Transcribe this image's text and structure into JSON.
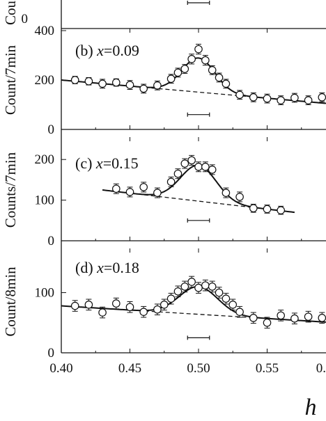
{
  "figure": {
    "x_axis_symbol": "h",
    "x_tick_labels": [
      "0.40",
      "0.45",
      "0.50",
      "0.55",
      "0."
    ]
  },
  "chart_data": [
    {
      "type": "scatter",
      "panel": "a",
      "title": "",
      "xlabel": "",
      "ylabel": "Cou",
      "ylim_visible": [
        0,
        40
      ],
      "y_tick_labels": [
        "0"
      ],
      "x": [],
      "y": [],
      "resolution_bar": {
        "x_center": 0.5,
        "half_width": 0.008,
        "y": 14
      },
      "grid": false
    },
    {
      "type": "scatter",
      "panel": "b",
      "label_prefix": "(b) ",
      "label_var": "x",
      "label_value": "=0.09",
      "ylabel": "Count/7min",
      "xlim": [
        0.4,
        0.6
      ],
      "ylim": [
        0,
        400
      ],
      "y_ticks": [
        0,
        200,
        400
      ],
      "y_tick_labels": [
        "0",
        "200",
        "400"
      ],
      "x": [
        0.41,
        0.42,
        0.43,
        0.44,
        0.45,
        0.46,
        0.47,
        0.48,
        0.485,
        0.49,
        0.495,
        0.5,
        0.505,
        0.51,
        0.515,
        0.52,
        0.53,
        0.54,
        0.55,
        0.56,
        0.57,
        0.58,
        0.59
      ],
      "y": [
        200,
        195,
        185,
        190,
        180,
        165,
        178,
        205,
        230,
        245,
        285,
        325,
        280,
        240,
        210,
        185,
        140,
        130,
        125,
        118,
        128,
        118,
        130
      ],
      "yerr": [
        15,
        15,
        18,
        15,
        18,
        18,
        18,
        18,
        18,
        18,
        20,
        20,
        20,
        18,
        18,
        18,
        18,
        18,
        18,
        18,
        18,
        18,
        18
      ],
      "fit": {
        "baseline_start": [
          0.4,
          200
        ],
        "baseline_end": [
          0.6,
          102
        ],
        "peak_center": 0.5,
        "peak_amplitude": 138,
        "peak_sigma": 0.012
      },
      "resolution_bar": {
        "x_center": 0.5,
        "half_width": 0.008,
        "y": 60
      },
      "grid": false
    },
    {
      "type": "scatter",
      "panel": "c",
      "label_prefix": "(c) ",
      "label_var": "x",
      "label_value": "=0.15",
      "ylabel": "Counts/7min",
      "xlim": [
        0.4,
        0.6
      ],
      "ylim": [
        0,
        250
      ],
      "y_ticks": [
        0,
        100,
        200
      ],
      "y_tick_labels": [
        "0",
        "100",
        "200"
      ],
      "x": [
        0.44,
        0.45,
        0.46,
        0.47,
        0.48,
        0.485,
        0.49,
        0.495,
        0.5,
        0.505,
        0.51,
        0.52,
        0.53,
        0.54,
        0.55,
        0.56
      ],
      "y": [
        128,
        120,
        132,
        118,
        145,
        165,
        190,
        198,
        182,
        182,
        175,
        118,
        108,
        80,
        78,
        75
      ],
      "yerr": [
        12,
        12,
        12,
        12,
        12,
        12,
        12,
        12,
        12,
        12,
        12,
        12,
        12,
        10,
        10,
        10
      ],
      "fit": {
        "baseline_start": [
          0.43,
          125
        ],
        "baseline_end": [
          0.57,
          70
        ],
        "peak_center": 0.5,
        "peak_amplitude": 88,
        "peak_sigma": 0.013
      },
      "resolution_bar": {
        "x_center": 0.5,
        "half_width": 0.008,
        "y": 50
      },
      "grid": false
    },
    {
      "type": "scatter",
      "panel": "d",
      "label_prefix": "(d) ",
      "label_var": "x",
      "label_value": "=0.18",
      "ylabel": "Count/8min",
      "xlim": [
        0.4,
        0.6
      ],
      "ylim": [
        0,
        170
      ],
      "y_ticks": [
        0,
        100
      ],
      "y_tick_labels": [
        "0",
        "100"
      ],
      "x": [
        0.41,
        0.42,
        0.43,
        0.44,
        0.45,
        0.46,
        0.47,
        0.475,
        0.48,
        0.485,
        0.49,
        0.495,
        0.5,
        0.505,
        0.51,
        0.515,
        0.52,
        0.525,
        0.53,
        0.54,
        0.55,
        0.56,
        0.57,
        0.58,
        0.59
      ],
      "y": [
        78,
        80,
        67,
        82,
        76,
        68,
        72,
        80,
        90,
        102,
        110,
        118,
        108,
        112,
        110,
        100,
        90,
        80,
        68,
        58,
        50,
        62,
        57,
        60,
        58
      ],
      "yerr": [
        9,
        9,
        9,
        9,
        9,
        9,
        9,
        9,
        9,
        9,
        9,
        9,
        9,
        9,
        9,
        9,
        9,
        9,
        9,
        9,
        9,
        9,
        9,
        9,
        9
      ],
      "fit": {
        "baseline_start": [
          0.4,
          78
        ],
        "baseline_end": [
          0.6,
          50
        ],
        "peak_center": 0.5,
        "peak_amplitude": 46,
        "peak_sigma": 0.014
      },
      "resolution_bar": {
        "x_center": 0.5,
        "half_width": 0.008,
        "y": 25
      },
      "grid": false
    }
  ]
}
